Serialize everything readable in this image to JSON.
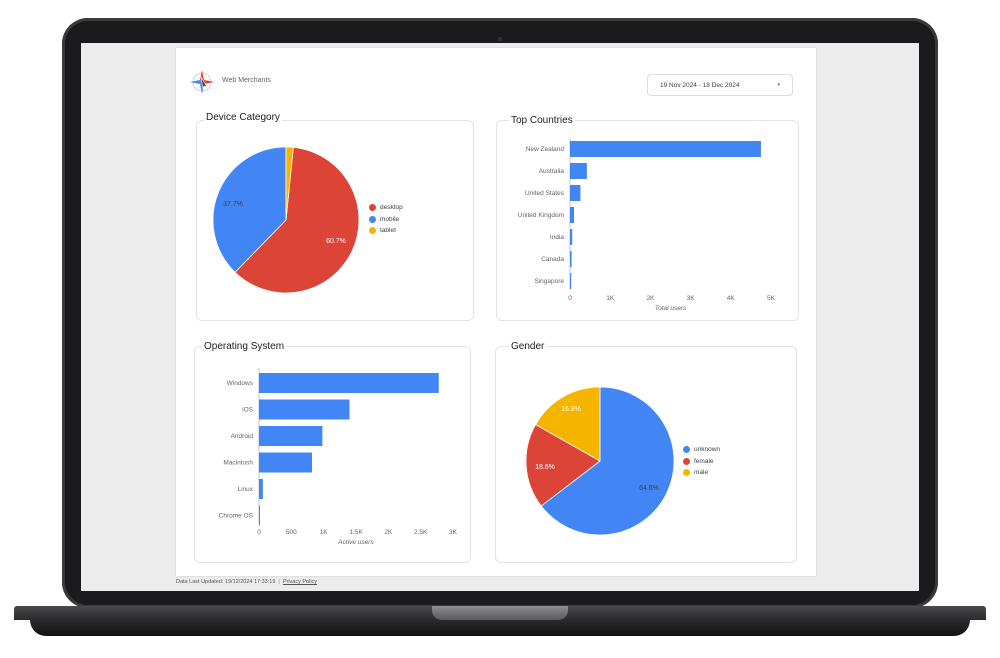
{
  "header": {
    "brand": "Web Merchants",
    "date_range": "19 Nov 2024 - 18 Dec 2024",
    "date_caret": "▾"
  },
  "footer": {
    "last_updated": "Data Last Updated: 19/12/2024 17:33:19",
    "separator": "|",
    "privacy_link": "Privacy Policy"
  },
  "colors": {
    "blue": "#4285f4",
    "red": "#db4437",
    "yellow": "#f4b400"
  },
  "chart_data": [
    {
      "type": "pie",
      "title": "Device Category",
      "slices": [
        {
          "label": "desktop",
          "value": 60.7,
          "display": "60.7%",
          "color": "#db4437"
        },
        {
          "label": "mobile",
          "value": 37.7,
          "display": "37.7%",
          "color": "#4285f4"
        },
        {
          "label": "tablet",
          "value": 1.6,
          "display": "",
          "color": "#f4b400"
        }
      ],
      "legend_position": "right"
    },
    {
      "type": "bar",
      "orientation": "horizontal",
      "title": "Top Countries",
      "categories": [
        "New Zealand",
        "Australia",
        "United States",
        "United Kingdom",
        "India",
        "Canada",
        "Singapore"
      ],
      "values": [
        4750,
        420,
        260,
        100,
        55,
        40,
        30
      ],
      "xlim": [
        0,
        5000
      ],
      "xticks": [
        0,
        1000,
        2000,
        3000,
        4000,
        5000
      ],
      "xtick_labels": [
        "0",
        "1K",
        "2K",
        "3K",
        "4K",
        "5K"
      ],
      "xlabel": "Total users",
      "color": "#4285f4"
    },
    {
      "type": "bar",
      "orientation": "horizontal",
      "title": "Operating System",
      "categories": [
        "Windows",
        "iOS",
        "Android",
        "Macintosh",
        "Linux",
        "Chrome OS"
      ],
      "values": [
        2780,
        1400,
        980,
        820,
        60,
        8
      ],
      "xlim": [
        0,
        3000
      ],
      "xticks": [
        0,
        500,
        1000,
        1500,
        2000,
        2500,
        3000
      ],
      "xtick_labels": [
        "0",
        "500",
        "1K",
        "1.5K",
        "2K",
        "2.5K",
        "3K"
      ],
      "xlabel": "Active users",
      "color": "#4285f4"
    },
    {
      "type": "pie",
      "title": "Gender",
      "slices": [
        {
          "label": "unknown",
          "value": 64.6,
          "display": "64.6%",
          "color": "#4285f4"
        },
        {
          "label": "female",
          "value": 18.6,
          "display": "18.6%",
          "color": "#db4437"
        },
        {
          "label": "male",
          "value": 16.8,
          "display": "16.8%",
          "color": "#f4b400"
        }
      ],
      "legend_position": "right"
    }
  ]
}
